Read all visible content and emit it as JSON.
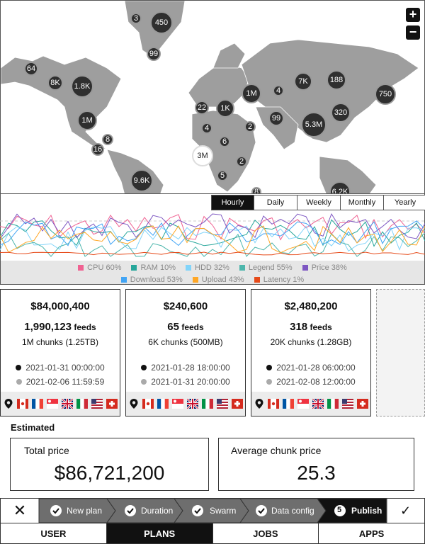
{
  "map": {
    "zoom_in": "+",
    "zoom_out": "−",
    "clusters": [
      {
        "label": "3"
      },
      {
        "label": "450"
      },
      {
        "label": "99"
      },
      {
        "label": "64"
      },
      {
        "label": "8K"
      },
      {
        "label": "1.8K"
      },
      {
        "label": "1M"
      },
      {
        "label": "8"
      },
      {
        "label": "16"
      },
      {
        "label": "9.6K"
      },
      {
        "label": "22"
      },
      {
        "label": "1K"
      },
      {
        "label": "1M"
      },
      {
        "label": "4"
      },
      {
        "label": "7K"
      },
      {
        "label": "188"
      },
      {
        "label": "750"
      },
      {
        "label": "4"
      },
      {
        "label": "2"
      },
      {
        "label": "99"
      },
      {
        "label": "5.3M"
      },
      {
        "label": "320"
      },
      {
        "label": "6"
      },
      {
        "label": "3M"
      },
      {
        "label": "2"
      },
      {
        "label": "5"
      },
      {
        "label": "8"
      },
      {
        "label": "6.2K"
      }
    ]
  },
  "time_tabs": [
    "Hourly",
    "Daily",
    "Weekly",
    "Monthly",
    "Yearly"
  ],
  "active_time_tab": "Hourly",
  "legend": {
    "row1": [
      {
        "label": "CPU 60%",
        "color": "#f06292"
      },
      {
        "label": "RAM 10%",
        "color": "#26a69a"
      },
      {
        "label": "HDD 32%",
        "color": "#81d4fa"
      },
      {
        "label": "Legend 55%",
        "color": "#4db6ac"
      },
      {
        "label": "Price 38%",
        "color": "#7e57c2"
      }
    ],
    "row2": [
      {
        "label": "Download 53%",
        "color": "#42a5f5"
      },
      {
        "label": "Upload 43%",
        "color": "#ffa726"
      },
      {
        "label": "Latency 1%",
        "color": "#e64a19"
      }
    ]
  },
  "cards": [
    {
      "price": "$84,000,400",
      "feeds_num": "1,990,123",
      "feeds_label": "feeds",
      "chunks": "1M chunks (1.25TB)",
      "start": "2021-01-31 00:00:00",
      "end": "2021-02-06 11:59:59"
    },
    {
      "price": "$240,600",
      "feeds_num": "65",
      "feeds_label": "feeds",
      "chunks": "6K chunks (500MB)",
      "start": "2021-01-28 18:00:00",
      "end": "2021-01-31 20:00:00"
    },
    {
      "price": "$2,480,200",
      "feeds_num": "318",
      "feeds_label": "feeds",
      "chunks": "20K chunks (1.28GB)",
      "start": "2021-01-28 06:00:00",
      "end": "2021-02-08 12:00:00"
    }
  ],
  "estimated": {
    "heading": "Estimated",
    "total_label": "Total price",
    "total_value": "$86,721,200",
    "avg_label": "Average chunk price",
    "avg_value": "25.3"
  },
  "stepper": {
    "close": "✕",
    "steps": [
      "New plan",
      "Duration",
      "Swarm",
      "Data config",
      "Publish"
    ],
    "current_number": "5",
    "confirm": "✓"
  },
  "bottom_nav": [
    "USER",
    "PLANS",
    "JOBS",
    "APPS"
  ],
  "active_nav": "PLANS"
}
